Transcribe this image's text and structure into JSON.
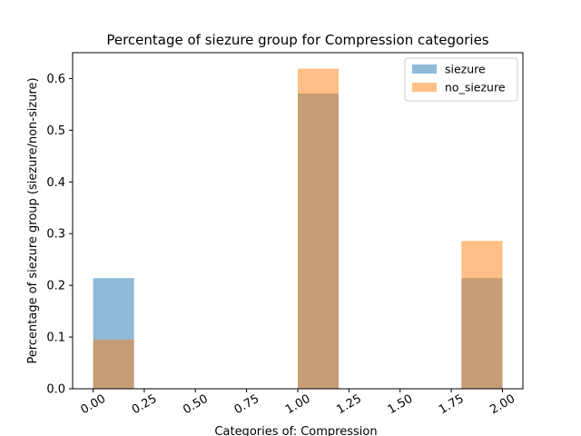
{
  "chart_data": {
    "type": "bar",
    "title": "Percentage of siezure group for Compression  categories",
    "xlabel": "Categories of: Compression",
    "ylabel": "Percentage of siezure group (siezure/non-sizure)",
    "xlim": [
      -0.1,
      2.1
    ],
    "ylim": [
      0,
      0.65
    ],
    "x_ticks": [
      0.0,
      0.25,
      0.5,
      0.75,
      1.0,
      1.25,
      1.5,
      1.75,
      2.0
    ],
    "x_tick_labels": [
      "0.00",
      "0.25",
      "0.50",
      "0.75",
      "1.00",
      "1.25",
      "1.50",
      "1.75",
      "2.00"
    ],
    "y_ticks": [
      0.0,
      0.1,
      0.2,
      0.3,
      0.4,
      0.5,
      0.6
    ],
    "y_tick_labels": [
      "0.0",
      "0.1",
      "0.2",
      "0.3",
      "0.4",
      "0.5",
      "0.6"
    ],
    "bin_width": 0.2,
    "legend_position": "top-right",
    "series": [
      {
        "name": "siezure",
        "color": "#1f77b4",
        "alpha": 0.5,
        "bins": [
          {
            "start": 0.0,
            "value": 0.214
          },
          {
            "start": 1.0,
            "value": 0.571
          },
          {
            "start": 1.8,
            "value": 0.214
          }
        ]
      },
      {
        "name": "no_siezure",
        "color": "#ff7f0e",
        "alpha": 0.5,
        "bins": [
          {
            "start": 0.0,
            "value": 0.095
          },
          {
            "start": 1.0,
            "value": 0.619
          },
          {
            "start": 1.8,
            "value": 0.286
          }
        ]
      }
    ]
  }
}
